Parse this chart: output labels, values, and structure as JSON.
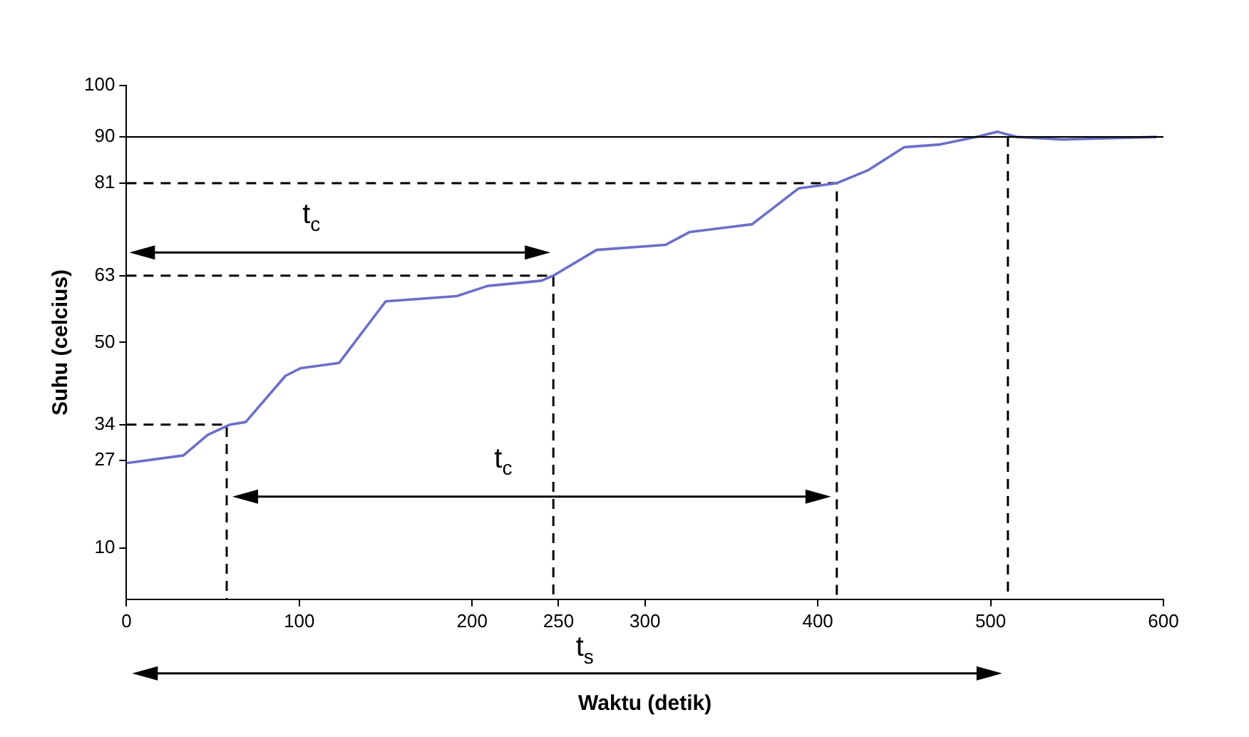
{
  "chart_data": {
    "type": "line",
    "xlabel": "Waktu (detik)",
    "ylabel": "Suhu (celcius)",
    "xlim": [
      0,
      600
    ],
    "xticks": [
      0,
      100,
      200,
      250,
      300,
      400,
      500,
      600
    ],
    "ylim": [
      0,
      100
    ],
    "yticks": [
      10,
      27,
      34,
      50,
      63,
      81,
      90,
      100
    ],
    "grid": false,
    "legend": false,
    "marker": "none",
    "series": [
      {
        "color": "#6a6fc8",
        "x": [
          0,
          33,
          47,
          60,
          69,
          92,
          101,
          123,
          150,
          191,
          209,
          240,
          247,
          272,
          312,
          326,
          362,
          389,
          411,
          429,
          450,
          470,
          492,
          504,
          515,
          542,
          596
        ],
        "values": [
          26.5,
          28,
          32,
          34,
          34.5,
          43.5,
          45,
          46,
          58,
          59,
          61,
          62,
          63,
          68,
          69,
          71.5,
          73,
          80,
          81,
          83.5,
          88,
          88.5,
          90,
          91,
          90,
          89.5,
          90
        ]
      },
      {
        "type": "line",
        "line_style": "dashed",
        "color": "#000000",
        "x": [
          0,
          58,
          58
        ],
        "values": [
          34,
          34,
          0
        ]
      },
      {
        "type": "line",
        "line_style": "dashed",
        "color": "#000000",
        "x": [
          0,
          247,
          247
        ],
        "values": [
          63,
          63,
          0
        ]
      },
      {
        "type": "line",
        "line_style": "dashed",
        "color": "#000000",
        "x": [
          0,
          411,
          411
        ],
        "values": [
          81,
          81,
          0
        ]
      },
      {
        "type": "line",
        "line_style": "dashed",
        "color": "#000000",
        "x": [
          510,
          510
        ],
        "values": [
          90,
          0
        ]
      }
    ],
    "ref_lines": [
      {
        "axis": "y",
        "value": 90,
        "color": "#000000",
        "line_style": "solid"
      }
    ],
    "annotations": [
      "t$_{c}$",
      "t$_{c}$",
      "t$_{s}$"
    ]
  }
}
